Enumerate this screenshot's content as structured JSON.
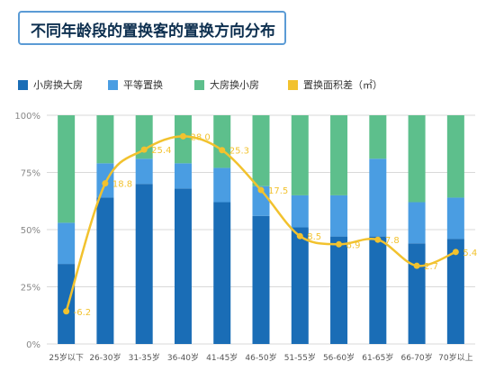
{
  "title": "不同年龄段的置换客的置换方向分布",
  "colors": {
    "small_to_big": "#1a6db6",
    "equal": "#4a9de2",
    "big_to_small": "#5dbf8c",
    "area_diff": "#f2c22e",
    "grid": "#d9d9d9",
    "title_border": "#5b9bd5"
  },
  "legend": [
    {
      "label": "小房换大房",
      "color_key": "small_to_big"
    },
    {
      "label": "平等置换",
      "color_key": "equal"
    },
    {
      "label": "大房换小房",
      "color_key": "big_to_small"
    },
    {
      "label": "置换面积差（㎡）",
      "color_key": "area_diff"
    }
  ],
  "chart_data": {
    "type": "bar",
    "stacked": true,
    "categories": [
      "25岁以下",
      "26-30岁",
      "31-35岁",
      "36-40岁",
      "41-45岁",
      "46-50岁",
      "51-55岁",
      "56-60岁",
      "61-65岁",
      "66-70岁",
      "70岁以上"
    ],
    "y_ticks": [
      "0%",
      "25%",
      "50%",
      "75%",
      "100%"
    ],
    "ylim": [
      0,
      100
    ],
    "series": [
      {
        "name": "小房换大房",
        "values": [
          35,
          64,
          70,
          68,
          62,
          56,
          51,
          47,
          47,
          44,
          46
        ]
      },
      {
        "name": "平等置换",
        "values": [
          18,
          15,
          11,
          11,
          15,
          13,
          14,
          18,
          34,
          18,
          18
        ]
      },
      {
        "name": "大房换小房",
        "values": [
          47,
          21,
          19,
          21,
          23,
          31,
          35,
          35,
          19,
          38,
          36
        ]
      }
    ],
    "line": {
      "name": "置换面积差（㎡）",
      "values": [
        -6.2,
        18.8,
        25.4,
        28.0,
        25.3,
        17.5,
        8.5,
        6.9,
        7.8,
        2.7,
        5.4
      ],
      "labels": [
        "-6.2",
        "18.8",
        "25.4",
        "28.0",
        "25.3",
        "17.5",
        "8.5",
        "6.9",
        "7.8",
        "2.7",
        "5.4"
      ],
      "ylim": [
        -8,
        30
      ]
    },
    "grid": true,
    "legend_position": "top"
  }
}
